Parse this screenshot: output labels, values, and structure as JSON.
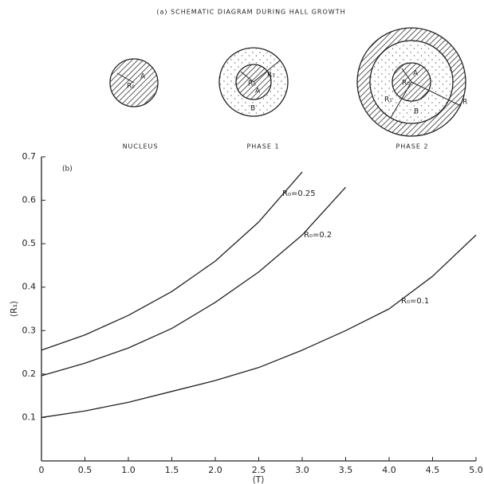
{
  "schematic": {
    "title": "(a) SCHEMATIC DIAGRAM DURING HALL GROWTH",
    "captions": [
      "NUCLEUS",
      "PHASE 1",
      "PHASE 2"
    ],
    "nucleus_labels": [
      "R₀",
      "A"
    ],
    "phase1_labels": [
      "R₀",
      "A",
      "R₁",
      "B"
    ],
    "phase2_labels": [
      "R₀",
      "A",
      "R₁",
      "B",
      "R"
    ]
  },
  "chart_data": {
    "type": "line",
    "panel_label": "(b)",
    "x_label": "⟨T⟩",
    "y_label": "⟨R₁⟩",
    "x": [
      0,
      0.5,
      1.0,
      1.5,
      2.0,
      2.5,
      3.0,
      3.5,
      4.0,
      4.5,
      5.0
    ],
    "series": [
      {
        "name": "R₀=0.25",
        "color": "#222222",
        "values": [
          0.255,
          0.29,
          0.335,
          0.39,
          0.46,
          0.55,
          0.665,
          null,
          null,
          null,
          null
        ]
      },
      {
        "name": "R₀=0.2",
        "color": "#222222",
        "values": [
          0.196,
          0.225,
          0.26,
          0.305,
          0.365,
          0.435,
          0.52,
          0.63,
          null,
          null,
          null
        ]
      },
      {
        "name": "R₀=0.1",
        "color": "#222222",
        "values": [
          0.1,
          0.115,
          0.135,
          0.16,
          0.185,
          0.215,
          0.255,
          0.3,
          0.35,
          0.425,
          0.52
        ]
      }
    ],
    "xlim": [
      0,
      5.0
    ],
    "ylim": [
      0,
      0.7
    ],
    "xticks": [
      0,
      0.5,
      {
        "value": 1,
        "label": "1.0"
      },
      1.5,
      {
        "value": 2,
        "label": "2.0"
      },
      2.5,
      {
        "value": 3,
        "label": "3.0"
      },
      3.5,
      {
        "value": 4,
        "label": "4.0"
      },
      4.5,
      {
        "value": 5,
        "label": "5.0"
      }
    ],
    "yticks": [
      0.1,
      0.2,
      0.3,
      0.4,
      0.5,
      0.6,
      0.7
    ],
    "grid": false
  }
}
